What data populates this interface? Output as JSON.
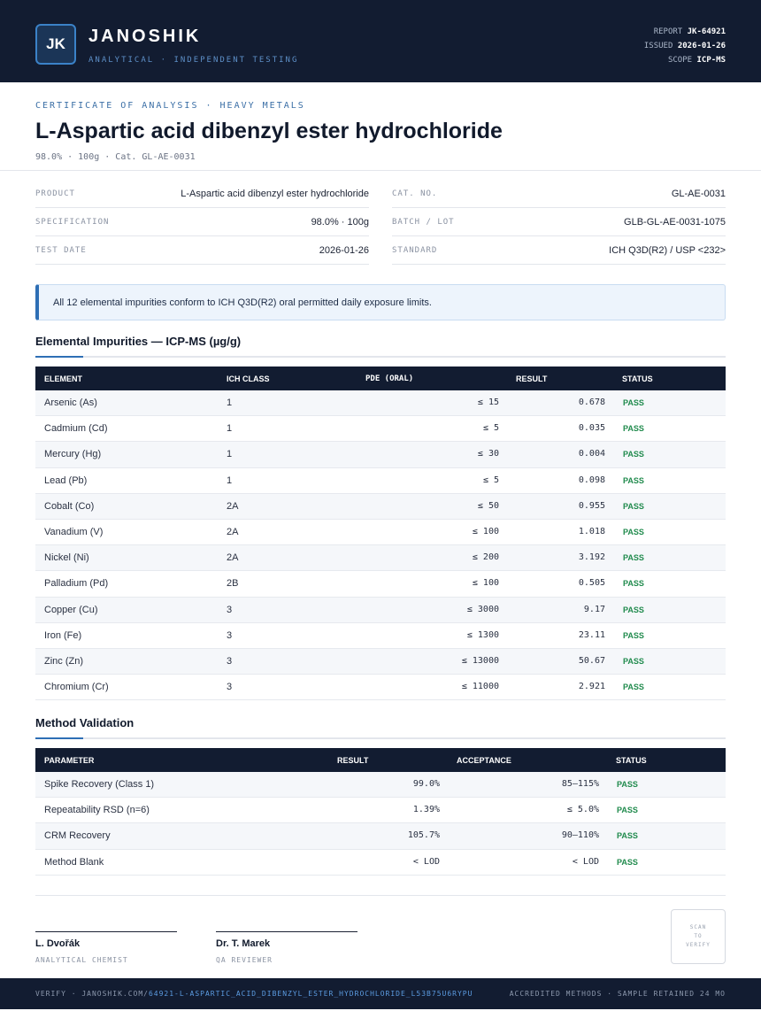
{
  "header": {
    "logo": "JK",
    "brand": "JANOSHIK",
    "tagline": "ANALYTICAL · INDEPENDENT TESTING",
    "report_label": "REPORT",
    "report_value": "JK-64921",
    "issued_label": "ISSUED",
    "issued_value": "2026-01-26",
    "scope_label": "SCOPE",
    "scope_value": "ICP-MS"
  },
  "document": {
    "cert_label": "CERTIFICATE OF ANALYSIS · HEAVY METALS",
    "title": "L-Aspartic acid dibenzyl ester hydrochloride",
    "subtitle": "98.0% · 100g  ·  Cat. GL-AE-0031"
  },
  "info": [
    {
      "label": "PRODUCT",
      "value": "L-Aspartic acid dibenzyl ester hydrochloride"
    },
    {
      "label": "CAT. NO.",
      "value": "GL-AE-0031"
    },
    {
      "label": "SPECIFICATION",
      "value": "98.0% · 100g"
    },
    {
      "label": "BATCH / LOT",
      "value": "GLB-GL-AE-0031-1075"
    },
    {
      "label": "TEST DATE",
      "value": "2026-01-26"
    },
    {
      "label": "STANDARD",
      "value": "ICH Q3D(R2) / USP <232>"
    }
  ],
  "notice": "All 12 elemental impurities conform to ICH Q3D(R2) oral permitted daily exposure limits.",
  "impurities": {
    "title": "Elemental Impurities — ICP-MS (µg/g)",
    "headers": {
      "element": "ELEMENT",
      "class": "ICH CLASS",
      "pde": "PDE (ORAL)",
      "result": "RESULT",
      "status": "STATUS"
    },
    "rows": [
      {
        "element": "Arsenic (As)",
        "class": "1",
        "pde": "≤ 15",
        "result": "0.678",
        "status": "PASS"
      },
      {
        "element": "Cadmium (Cd)",
        "class": "1",
        "pde": "≤ 5",
        "result": "0.035",
        "status": "PASS"
      },
      {
        "element": "Mercury (Hg)",
        "class": "1",
        "pde": "≤ 30",
        "result": "0.004",
        "status": "PASS"
      },
      {
        "element": "Lead (Pb)",
        "class": "1",
        "pde": "≤ 5",
        "result": "0.098",
        "status": "PASS"
      },
      {
        "element": "Cobalt (Co)",
        "class": "2A",
        "pde": "≤ 50",
        "result": "0.955",
        "status": "PASS"
      },
      {
        "element": "Vanadium (V)",
        "class": "2A",
        "pde": "≤ 100",
        "result": "1.018",
        "status": "PASS"
      },
      {
        "element": "Nickel (Ni)",
        "class": "2A",
        "pde": "≤ 200",
        "result": "3.192",
        "status": "PASS"
      },
      {
        "element": "Palladium (Pd)",
        "class": "2B",
        "pde": "≤ 100",
        "result": "0.505",
        "status": "PASS"
      },
      {
        "element": "Copper (Cu)",
        "class": "3",
        "pde": "≤ 3000",
        "result": "9.17",
        "status": "PASS"
      },
      {
        "element": "Iron (Fe)",
        "class": "3",
        "pde": "≤ 1300",
        "result": "23.11",
        "status": "PASS"
      },
      {
        "element": "Zinc (Zn)",
        "class": "3",
        "pde": "≤ 13000",
        "result": "50.67",
        "status": "PASS"
      },
      {
        "element": "Chromium (Cr)",
        "class": "3",
        "pde": "≤ 11000",
        "result": "2.921",
        "status": "PASS"
      }
    ]
  },
  "validation": {
    "title": "Method Validation",
    "headers": {
      "parameter": "PARAMETER",
      "result": "RESULT",
      "acceptance": "ACCEPTANCE",
      "status": "STATUS"
    },
    "rows": [
      {
        "parameter": "Spike Recovery (Class 1)",
        "result": "99.0%",
        "acceptance": "85–115%",
        "status": "PASS"
      },
      {
        "parameter": "Repeatability RSD (n=6)",
        "result": "1.39%",
        "acceptance": "≤ 5.0%",
        "status": "PASS"
      },
      {
        "parameter": "CRM Recovery",
        "result": "105.7%",
        "acceptance": "90–110%",
        "status": "PASS"
      },
      {
        "parameter": "Method Blank",
        "result": "< LOD",
        "acceptance": "< LOD",
        "status": "PASS"
      }
    ]
  },
  "signatures": [
    {
      "name": "L. Dvořák",
      "role": "ANALYTICAL CHEMIST"
    },
    {
      "name": "Dr. T. Marek",
      "role": "QA REVIEWER"
    }
  ],
  "qr": {
    "line1": "SCAN",
    "line2": "TO",
    "line3": "VERIFY"
  },
  "footer": {
    "verify_prefix": "VERIFY · JANOSHIK.COM/",
    "verify_link": "64921-L-ASPARTIC_ACID_DIBENZYL_ESTER_HYDROCHLORIDE_L53B75U6RYPU",
    "right": "ACCREDITED METHODS · SAMPLE RETAINED 24 MO"
  },
  "colors": {
    "navy": "#121c31",
    "accent": "#2e6fb5",
    "pass": "#1f8a4c"
  }
}
